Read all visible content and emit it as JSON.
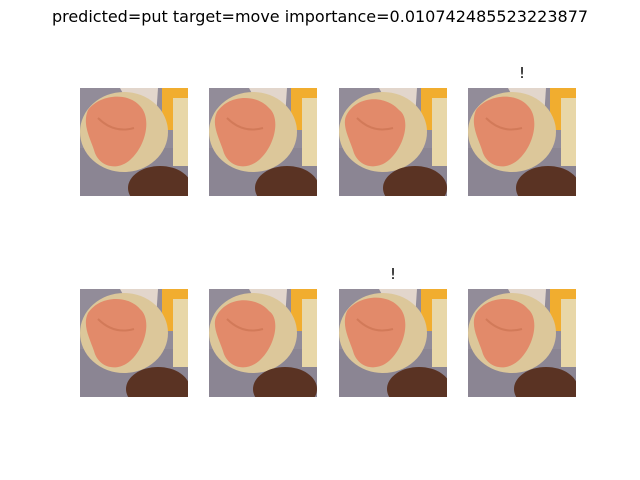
{
  "title": "predicted=put target=move importance=0.010742485523223877",
  "frames": [
    {
      "mark": ""
    },
    {
      "mark": ""
    },
    {
      "mark": ""
    },
    {
      "mark": "!"
    },
    {
      "mark": ""
    },
    {
      "mark": ""
    },
    {
      "mark": "!"
    },
    {
      "mark": ""
    }
  ],
  "colors": {
    "table": "#8b8593",
    "bread": "#dcc79a",
    "salmon": "#e28a6a",
    "cheese": "#f1ad2f",
    "board": "#e8d7a8",
    "bowl": "#5a3323",
    "napkin": "#e2d6cc"
  }
}
